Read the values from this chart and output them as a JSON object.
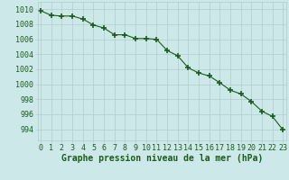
{
  "x": [
    0,
    1,
    2,
    3,
    4,
    5,
    6,
    7,
    8,
    9,
    10,
    11,
    12,
    13,
    14,
    15,
    16,
    17,
    18,
    19,
    20,
    21,
    22,
    23
  ],
  "y": [
    1009.8,
    1009.2,
    1009.1,
    1009.1,
    1008.7,
    1007.9,
    1007.5,
    1006.6,
    1006.6,
    1006.1,
    1006.1,
    1006.0,
    1004.5,
    1003.8,
    1002.2,
    1001.5,
    1001.1,
    1000.2,
    999.2,
    998.7,
    997.7,
    996.4,
    995.7,
    993.9
  ],
  "line_color": "#1a5c1a",
  "marker": "+",
  "marker_size": 4,
  "bg_color": "#cce8e8",
  "grid_color": "#b0cccc",
  "xlabel": "Graphe pression niveau de la mer (hPa)",
  "xlabel_fontsize": 7,
  "ytick_values": [
    994,
    996,
    998,
    1000,
    1002,
    1004,
    1006,
    1008,
    1010
  ],
  "ylim": [
    992.5,
    1011.0
  ],
  "xlim": [
    -0.3,
    23.3
  ],
  "tick_fontsize": 6
}
